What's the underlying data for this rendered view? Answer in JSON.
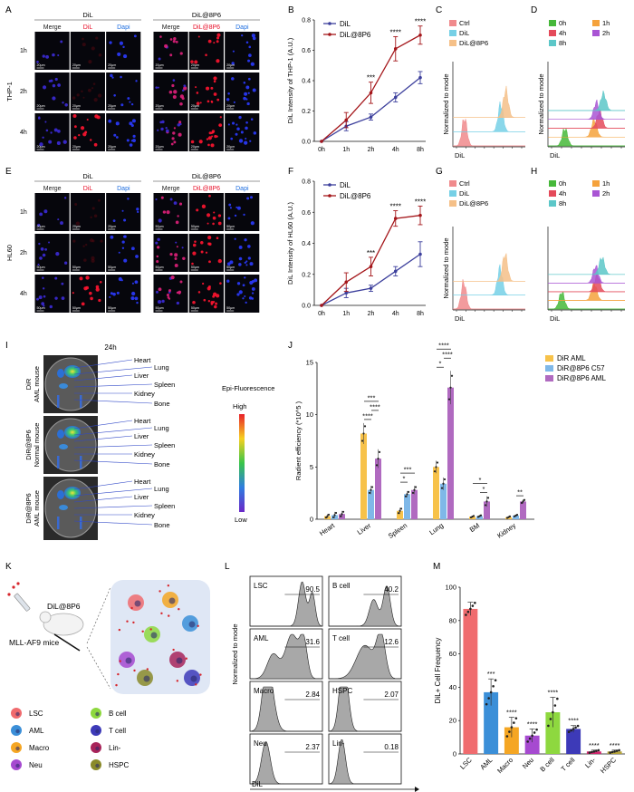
{
  "panel_letters": [
    "A",
    "B",
    "C",
    "D",
    "E",
    "F",
    "G",
    "H",
    "I",
    "J",
    "K",
    "L",
    "M"
  ],
  "micro": {
    "groups": [
      "DiL",
      "DiL@8P6"
    ],
    "channels": [
      "Merge",
      "DiL",
      "Dapi"
    ],
    "channels_8p6": [
      "Merge",
      "DiL@8P6",
      "Dapi"
    ],
    "times": [
      "1h",
      "2h",
      "4h"
    ],
    "cell_line_A": "THP-1",
    "cell_line_E": "HL60",
    "scale_A": "20μm",
    "scale_E_1h": "20μm",
    "scale_E": "50μm",
    "colors": {
      "merge": "#222222",
      "dil": "#e8102a",
      "dapi": "#1f6fe0"
    }
  },
  "chart_data": [
    {
      "type": "line",
      "panel": "B",
      "categories": [
        "0h",
        "1h",
        "2h",
        "4h",
        "8h"
      ],
      "ylabel": "DiL Intensity of THP-1  (A.U.)",
      "ylim": [
        0,
        0.8
      ],
      "yticks": [
        "0.0",
        "0.2",
        "0.4",
        "0.6",
        "0.8"
      ],
      "series": [
        {
          "name": "DiL",
          "color": "#3c3f9c",
          "values": [
            0.0,
            0.1,
            0.16,
            0.29,
            0.42
          ],
          "errors": [
            0,
            0.03,
            0.02,
            0.03,
            0.04
          ]
        },
        {
          "name": "DiL@8P6",
          "color": "#a4161a",
          "values": [
            0.0,
            0.14,
            0.32,
            0.61,
            0.7
          ],
          "errors": [
            0,
            0.05,
            0.07,
            0.08,
            0.06
          ]
        }
      ],
      "significance": [
        {
          "category": "2h",
          "label": "***"
        },
        {
          "category": "4h",
          "label": "****"
        },
        {
          "category": "8h",
          "label": "****"
        }
      ]
    },
    {
      "type": "line",
      "panel": "F",
      "categories": [
        "0h",
        "1h",
        "2h",
        "4h",
        "8h"
      ],
      "ylabel": "DiL Intensity of HL60  (A.U.)",
      "ylim": [
        0,
        0.8
      ],
      "yticks": [
        "0.0",
        "0.2",
        "0.4",
        "0.6",
        "0.8"
      ],
      "series": [
        {
          "name": "DiL",
          "color": "#3c3f9c",
          "values": [
            0.0,
            0.08,
            0.11,
            0.22,
            0.33
          ],
          "errors": [
            0,
            0.03,
            0.02,
            0.03,
            0.08
          ]
        },
        {
          "name": "DiL@8P6",
          "color": "#a4161a",
          "values": [
            0.0,
            0.15,
            0.25,
            0.56,
            0.58
          ],
          "errors": [
            0,
            0.06,
            0.06,
            0.05,
            0.06
          ]
        }
      ],
      "significance": [
        {
          "category": "2h",
          "label": "***"
        },
        {
          "category": "4h",
          "label": "****"
        },
        {
          "category": "8h",
          "label": "****"
        }
      ]
    },
    {
      "type": "area",
      "panel": "C",
      "xlabel": "DiL",
      "ylabel": "Normalized to mode",
      "series": [
        {
          "name": "Ctrl",
          "color": "#f08a8c",
          "peak": 0.16
        },
        {
          "name": "DiL",
          "color": "#76d0e6",
          "peak": 0.66
        },
        {
          "name": "DiL@8P6",
          "color": "#f5c088",
          "peak": 0.73
        }
      ]
    },
    {
      "type": "area",
      "panel": "D",
      "xlabel": "DiL",
      "ylabel": "Normalized to mode",
      "series": [
        {
          "name": "0h",
          "color": "#46b83a",
          "peak": 0.22
        },
        {
          "name": "1h",
          "color": "#f5a23c",
          "peak": 0.6
        },
        {
          "name": "4h",
          "color": "#e44a5a",
          "peak": 0.67
        },
        {
          "name": "2h",
          "color": "#a955d4",
          "peak": 0.63
        },
        {
          "name": "8h",
          "color": "#5cc7c8",
          "peak": 0.72
        }
      ]
    },
    {
      "type": "area",
      "panel": "G",
      "xlabel": "DiL",
      "ylabel": "Normalized to mode",
      "series": [
        {
          "name": "Ctrl",
          "color": "#f08a8c",
          "peak": 0.15
        },
        {
          "name": "DiL",
          "color": "#76d0e6",
          "peak": 0.65
        },
        {
          "name": "DiL@8P6",
          "color": "#f5c088",
          "peak": 0.72
        }
      ]
    },
    {
      "type": "area",
      "panel": "H",
      "xlabel": "DiL",
      "ylabel": "",
      "series": [
        {
          "name": "0h",
          "color": "#46b83a",
          "peak": 0.18
        },
        {
          "name": "1h",
          "color": "#f5a23c",
          "peak": 0.6
        },
        {
          "name": "4h",
          "color": "#e44a5a",
          "peak": 0.64
        },
        {
          "name": "2h",
          "color": "#a955d4",
          "peak": 0.62
        },
        {
          "name": "8h",
          "color": "#5cc7c8",
          "peak": 0.7
        }
      ]
    },
    {
      "type": "bar",
      "panel": "J",
      "categories": [
        "Heart",
        "Liver",
        "Spleen",
        "Lung",
        "BM",
        "Kidney"
      ],
      "ylabel": "Radient efficiency    (*10^5 )",
      "ylim": [
        0,
        15
      ],
      "yticks": [
        "0",
        "5",
        "10",
        "15"
      ],
      "series": [
        {
          "name": "DiR AML",
          "color": "#f7c24a",
          "values": [
            0.3,
            8.2,
            0.8,
            5.0,
            0.25,
            0.2
          ],
          "errors": [
            0.2,
            1.0,
            0.3,
            0.6,
            0.1,
            0.1
          ]
        },
        {
          "name": "DiR@8P6 C57",
          "color": "#7fb8e8",
          "values": [
            0.4,
            2.8,
            2.4,
            3.4,
            0.3,
            0.35
          ],
          "errors": [
            0.3,
            0.4,
            0.3,
            0.6,
            0.1,
            0.1
          ]
        },
        {
          "name": "DiR@8P6 AML",
          "color": "#b06ac0",
          "values": [
            0.5,
            5.8,
            2.8,
            12.6,
            1.7,
            1.7
          ],
          "errors": [
            0.3,
            0.9,
            0.4,
            1.6,
            0.5,
            0.2
          ]
        }
      ],
      "significance": [
        {
          "category": "Liver",
          "pair": [
            0,
            1
          ],
          "label": "****"
        },
        {
          "category": "Liver",
          "pair": [
            1,
            2
          ],
          "label": "****"
        },
        {
          "category": "Liver",
          "pair": [
            0,
            2
          ],
          "label": "***"
        },
        {
          "category": "Spleen",
          "pair": [
            0,
            1
          ],
          "label": "*"
        },
        {
          "category": "Spleen",
          "pair": [
            0,
            2
          ],
          "label": "***"
        },
        {
          "category": "Lung",
          "pair": [
            0,
            1
          ],
          "label": "*"
        },
        {
          "category": "Lung",
          "pair": [
            1,
            2
          ],
          "label": "****"
        },
        {
          "category": "Lung",
          "pair": [
            0,
            2
          ],
          "label": "****"
        },
        {
          "category": "BM",
          "pair": [
            1,
            2
          ],
          "label": "*"
        },
        {
          "category": "BM",
          "pair": [
            0,
            2
          ],
          "label": "*"
        },
        {
          "category": "Kidney",
          "pair": [
            1,
            2
          ],
          "label": "**"
        }
      ]
    },
    {
      "type": "area",
      "panel": "L",
      "xlabel": "DiL",
      "ylabel": "Normalized to mode",
      "series": [
        {
          "name": "LSC",
          "value": "90.5"
        },
        {
          "name": "B cell",
          "value": "40.2"
        },
        {
          "name": "AML",
          "value": "31.6"
        },
        {
          "name": "T cell",
          "value": "12.6"
        },
        {
          "name": "Macro",
          "value": "2.84"
        },
        {
          "name": "HSPC",
          "value": "2.07"
        },
        {
          "name": "Neu",
          "value": "2.37"
        },
        {
          "name": "Lin-",
          "value": "0.18"
        }
      ]
    },
    {
      "type": "bar",
      "panel": "M",
      "categories": [
        "LSC",
        "AML",
        "Macro",
        "Neu",
        "B cell",
        "T cell",
        "Lin-",
        "HSPC"
      ],
      "ylabel": "DiL+ Cell Frequency",
      "ylim": [
        0,
        100
      ],
      "yticks": [
        "0",
        "20",
        "40",
        "60",
        "80",
        "100"
      ],
      "colors": [
        "#f06b6e",
        "#3b8fd8",
        "#f5a623",
        "#a64ad0",
        "#8ed83f",
        "#3d3ab8",
        "#d2276e",
        "#b5a43a"
      ],
      "values": [
        87,
        37,
        16,
        11,
        25,
        15,
        1.5,
        1.5
      ],
      "errors": [
        4,
        8,
        6,
        4,
        9,
        2,
        0.8,
        0.8
      ],
      "significance": [
        "",
        "***",
        "****",
        "****",
        "****",
        "****",
        "****",
        "****"
      ]
    }
  ],
  "imaging": {
    "title": "24h",
    "rows": [
      {
        "label": "DiR\nAML mouse",
        "organs": [
          "Heart",
          "Lung",
          "Liver",
          "Spleen",
          "Kidney",
          "Bone"
        ]
      },
      {
        "label": "DiR@8P6\nNormal mouse",
        "organs": [
          "Heart",
          "Lung",
          "Liver",
          "Spleen",
          "Kidney",
          "Bone"
        ]
      },
      {
        "label": "DiR@8P6\nAML mouse",
        "organs": [
          "Heart",
          "Lung",
          "Liver",
          "Spleen",
          "Kidney",
          "Bone"
        ]
      }
    ],
    "scale_title": "Epi-Fluorescence",
    "scale_high": "High",
    "scale_low": "Low"
  },
  "schematic": {
    "injection": "DiL@8P6",
    "model": "MLL-AF9 mice",
    "legend": [
      {
        "name": "LSC",
        "color": "#f06b6e"
      },
      {
        "name": "B cell",
        "color": "#8ed83f"
      },
      {
        "name": "AML",
        "color": "#3b8fd8"
      },
      {
        "name": "T cell",
        "color": "#3d3ab8"
      },
      {
        "name": "Macro",
        "color": "#f5a623"
      },
      {
        "name": "Lin-",
        "color": "#a8245a"
      },
      {
        "name": "Neu",
        "color": "#a64ad0"
      },
      {
        "name": "HSPC",
        "color": "#8a8a2a"
      }
    ]
  }
}
